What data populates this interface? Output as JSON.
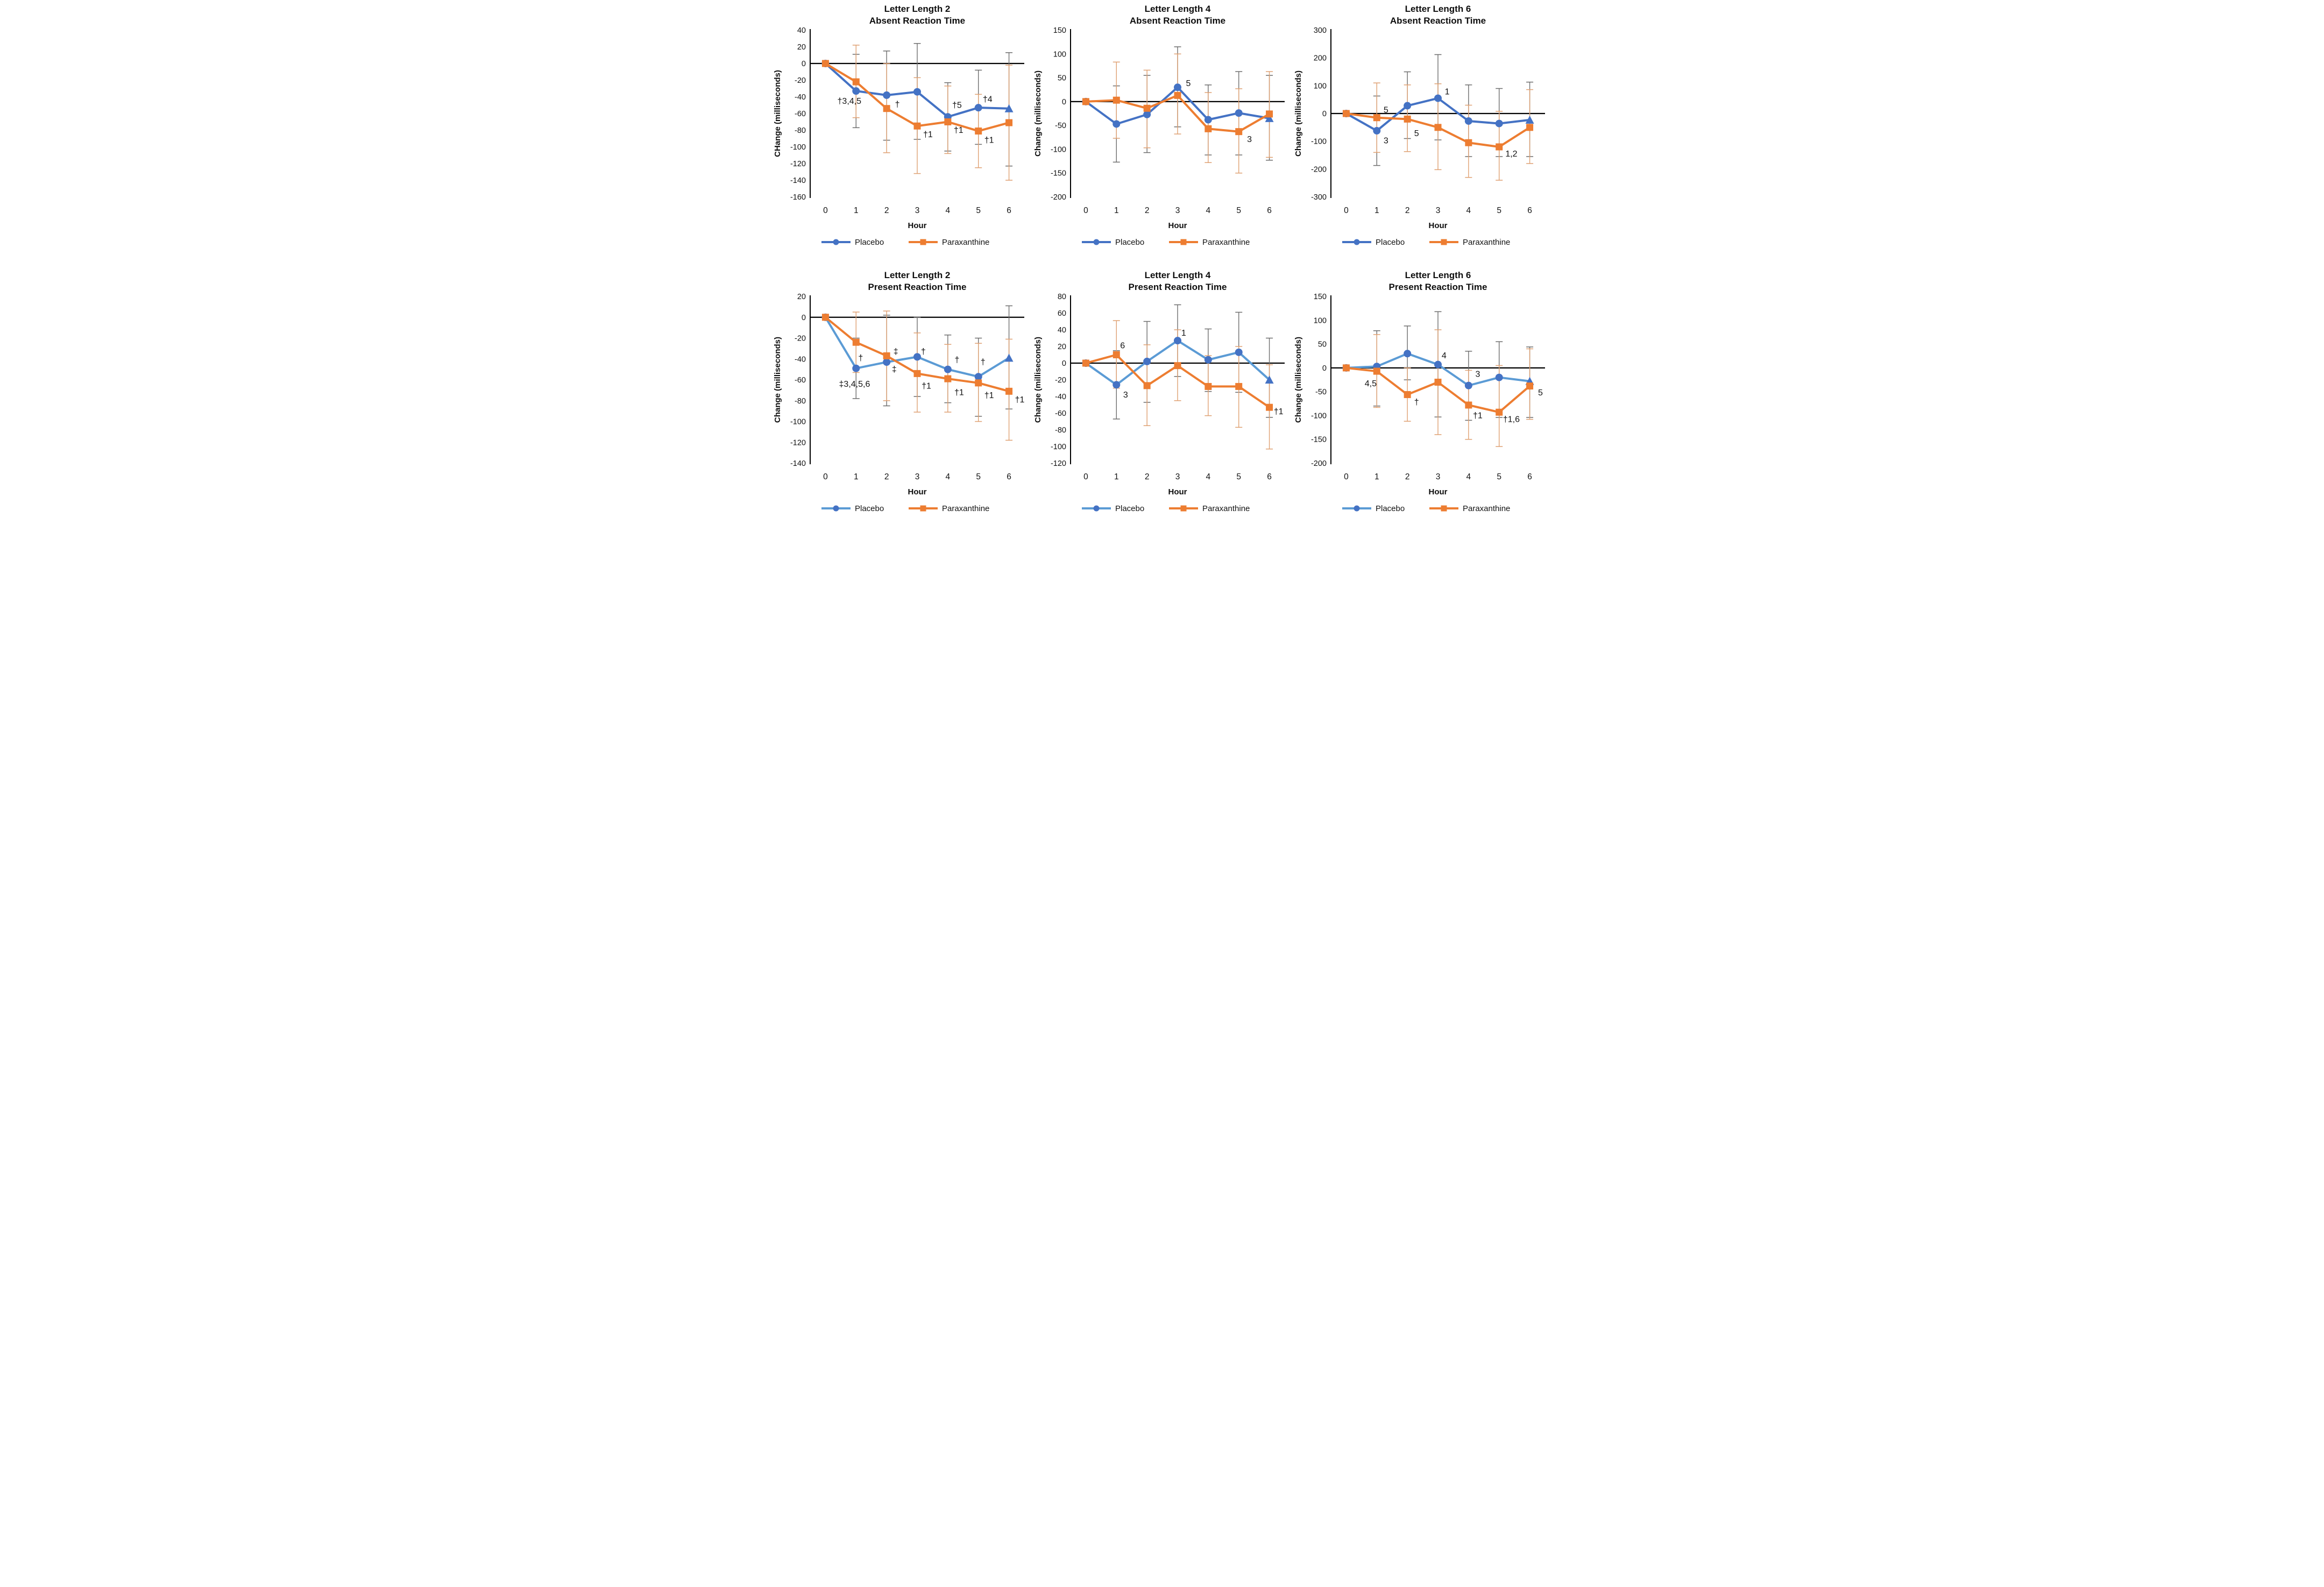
{
  "figure": {
    "background": "#FFFFFF",
    "rows": 2,
    "cols": 3
  },
  "colors": {
    "placebo_line_top_row": "#4472C4",
    "placebo_line_bottom_row": "#5B9BD5",
    "placebo_marker": "#4472C4",
    "paraxanthine": "#ED7D31",
    "placebo_error": "#6E6E6E",
    "paraxanthine_error": "#DFA173",
    "axis": "#000000"
  },
  "chart_data": [
    {
      "type": "line",
      "title_line1": "Letter Length 2",
      "title_line2": "Absent Reaction Time",
      "xlabel": "Hour",
      "ylabel": "CHange (milliseconds)",
      "x": [
        0,
        1,
        2,
        3,
        4,
        5,
        6
      ],
      "ylim": [
        -160,
        40
      ],
      "ytick_step": 20,
      "yticks": [
        40,
        20,
        0,
        -20,
        -40,
        -60,
        -80,
        -100,
        -120,
        -140,
        -160
      ],
      "grid": "off",
      "legend_position": "bottom",
      "series": [
        {
          "name": "Placebo",
          "marker": "circle",
          "last_point_marker": "triangle",
          "line_color": "#4472C4",
          "marker_color": "#4472C4",
          "error_color": "#6E6E6E",
          "values": [
            0,
            -33,
            -38,
            -34,
            -64,
            -53,
            -54
          ],
          "err_low": [
            null,
            -77,
            -92,
            -91,
            -105,
            -97,
            -123
          ],
          "err_high": [
            null,
            11,
            15,
            24,
            -23,
            -8,
            13
          ]
        },
        {
          "name": "Paraxanthine",
          "marker": "square",
          "line_color": "#ED7D31",
          "marker_color": "#ED7D31",
          "error_color": "#DFA173",
          "values": [
            0,
            -22,
            -54,
            -75,
            -70,
            -81,
            -71
          ],
          "err_low": [
            null,
            -65,
            -107,
            -132,
            -108,
            -125,
            -140
          ],
          "err_high": [
            null,
            22,
            0,
            -17,
            -27,
            -37,
            -2
          ]
        }
      ],
      "annotations": [
        {
          "x": 0.78,
          "y": -45,
          "text": "†3,4,5"
        },
        {
          "x": 2.35,
          "y": -49,
          "text": "†"
        },
        {
          "x": 3.35,
          "y": -85,
          "text": "†1"
        },
        {
          "x": 4.3,
          "y": -50,
          "text": "†5"
        },
        {
          "x": 4.35,
          "y": -80,
          "text": "†1"
        },
        {
          "x": 5.3,
          "y": -43,
          "text": "†4"
        },
        {
          "x": 5.35,
          "y": -92,
          "text": "†1"
        }
      ]
    },
    {
      "type": "line",
      "title_line1": "Letter Length 4",
      "title_line2": "Absent Reaction Time",
      "xlabel": "Hour",
      "ylabel": "Change (milliseconds)",
      "x": [
        0,
        1,
        2,
        3,
        4,
        5,
        6
      ],
      "ylim": [
        -200,
        150
      ],
      "ytick_step": 50,
      "yticks": [
        150,
        100,
        50,
        0,
        -50,
        -100,
        -150,
        -200
      ],
      "grid": "off",
      "legend_position": "bottom",
      "series": [
        {
          "name": "Placebo",
          "marker": "circle",
          "last_point_marker": "triangle",
          "line_color": "#4472C4",
          "marker_color": "#4472C4",
          "error_color": "#6E6E6E",
          "values": [
            0,
            -47,
            -27,
            30,
            -38,
            -24,
            -35
          ],
          "err_low": [
            null,
            -127,
            -107,
            -53,
            -112,
            -112,
            -123
          ],
          "err_high": [
            null,
            33,
            55,
            115,
            35,
            63,
            55
          ]
        },
        {
          "name": "Paraxanthine",
          "marker": "square",
          "line_color": "#ED7D31",
          "marker_color": "#ED7D31",
          "error_color": "#DFA173",
          "values": [
            0,
            3,
            -14,
            13,
            -57,
            -63,
            -26
          ],
          "err_low": [
            null,
            -77,
            -97,
            -68,
            -128,
            -150,
            -117
          ],
          "err_high": [
            null,
            83,
            66,
            100,
            19,
            27,
            63
          ]
        }
      ],
      "annotations": [
        {
          "x": 3.35,
          "y": 38,
          "text": "5"
        },
        {
          "x": 5.35,
          "y": -79,
          "text": "3"
        }
      ]
    },
    {
      "type": "line",
      "title_line1": "Letter Length 6",
      "title_line2": "Absent Reaction Time",
      "xlabel": "Hour",
      "ylabel": "Change (milliseconds)",
      "x": [
        0,
        1,
        2,
        3,
        4,
        5,
        6
      ],
      "ylim": [
        -300,
        300
      ],
      "ytick_step": 100,
      "yticks": [
        300,
        200,
        100,
        0,
        -100,
        -200,
        -300
      ],
      "grid": "off",
      "legend_position": "bottom",
      "series": [
        {
          "name": "Placebo",
          "marker": "circle",
          "last_point_marker": "triangle",
          "line_color": "#4472C4",
          "marker_color": "#4472C4",
          "error_color": "#6E6E6E",
          "values": [
            0,
            -62,
            28,
            55,
            -27,
            -36,
            -23
          ],
          "err_low": [
            null,
            -187,
            -90,
            -95,
            -155,
            -155,
            -155
          ],
          "err_high": [
            null,
            63,
            150,
            212,
            103,
            90,
            113
          ]
        },
        {
          "name": "Paraxanthine",
          "marker": "square",
          "line_color": "#ED7D31",
          "marker_color": "#ED7D31",
          "error_color": "#DFA173",
          "values": [
            0,
            -15,
            -20,
            -50,
            -105,
            -120,
            -50
          ],
          "err_low": [
            null,
            -140,
            -137,
            -202,
            -230,
            -240,
            -180
          ],
          "err_high": [
            null,
            110,
            103,
            107,
            30,
            8,
            86
          ]
        }
      ],
      "annotations": [
        {
          "x": 1.3,
          "y": 13,
          "text": "5"
        },
        {
          "x": 1.3,
          "y": -98,
          "text": "3"
        },
        {
          "x": 2.3,
          "y": -72,
          "text": "5"
        },
        {
          "x": 3.3,
          "y": 78,
          "text": "1"
        },
        {
          "x": 5.4,
          "y": -145,
          "text": "1,2"
        }
      ]
    },
    {
      "type": "line",
      "title_line1": "Letter Length 2",
      "title_line2": "Present Reaction Time",
      "xlabel": "Hour",
      "ylabel": "Change (milliseconds)",
      "x": [
        0,
        1,
        2,
        3,
        4,
        5,
        6
      ],
      "ylim": [
        -140,
        20
      ],
      "ytick_step": 20,
      "yticks": [
        20,
        0,
        -20,
        -40,
        -60,
        -80,
        -100,
        -120,
        -140
      ],
      "grid": "off",
      "legend_position": "bottom",
      "series": [
        {
          "name": "Placebo",
          "marker": "circle",
          "last_point_marker": "triangle",
          "line_color": "#5B9BD5",
          "marker_color": "#4472C4",
          "error_color": "#6E6E6E",
          "values": [
            0,
            -49,
            -43,
            -38,
            -50,
            -57,
            -39
          ],
          "err_low": [
            null,
            -78,
            -85,
            -76,
            -82,
            -95,
            -88
          ],
          "err_high": [
            null,
            -20,
            2,
            0,
            -17,
            -20,
            11
          ]
        },
        {
          "name": "Paraxanthine",
          "marker": "square",
          "line_color": "#ED7D31",
          "marker_color": "#ED7D31",
          "error_color": "#DFA173",
          "values": [
            0,
            -24,
            -37,
            -54,
            -59,
            -63,
            -71
          ],
          "err_low": [
            null,
            -53,
            -80,
            -91,
            -91,
            -100,
            -118
          ],
          "err_high": [
            null,
            5,
            6,
            -15,
            -26,
            -25,
            -21
          ]
        }
      ],
      "annotations": [
        {
          "x": 1.15,
          "y": -39,
          "text": "†"
        },
        {
          "x": 0.95,
          "y": -64,
          "text": "‡3,4,5,6"
        },
        {
          "x": 2.3,
          "y": -33,
          "text": "‡"
        },
        {
          "x": 2.25,
          "y": -50,
          "text": "‡"
        },
        {
          "x": 3.2,
          "y": -33,
          "text": "†"
        },
        {
          "x": 3.3,
          "y": -66,
          "text": "†1"
        },
        {
          "x": 4.3,
          "y": -41,
          "text": "†"
        },
        {
          "x": 4.37,
          "y": -72,
          "text": "†1"
        },
        {
          "x": 5.15,
          "y": -43,
          "text": "†"
        },
        {
          "x": 5.35,
          "y": -75,
          "text": "†1"
        },
        {
          "x": 6.35,
          "y": -79,
          "text": "†1"
        }
      ]
    },
    {
      "type": "line",
      "title_line1": "Letter Length 4",
      "title_line2": "Present Reaction Time",
      "xlabel": "Hour",
      "ylabel": "Change (milliseconds)",
      "x": [
        0,
        1,
        2,
        3,
        4,
        5,
        6
      ],
      "ylim": [
        -120,
        80
      ],
      "ytick_step": 20,
      "yticks": [
        80,
        60,
        40,
        20,
        0,
        -20,
        -40,
        -60,
        -80,
        -100,
        -120
      ],
      "grid": "off",
      "legend_position": "bottom",
      "series": [
        {
          "name": "Placebo",
          "marker": "circle",
          "last_point_marker": "triangle",
          "line_color": "#5B9BD5",
          "marker_color": "#4472C4",
          "error_color": "#6E6E6E",
          "values": [
            0,
            -26,
            2,
            27,
            4,
            13,
            -20
          ],
          "err_low": [
            null,
            -67,
            -47,
            -16,
            -34,
            -35,
            -65
          ],
          "err_high": [
            null,
            15,
            50,
            70,
            41,
            61,
            30
          ]
        },
        {
          "name": "Paraxanthine",
          "marker": "square",
          "line_color": "#ED7D31",
          "marker_color": "#ED7D31",
          "error_color": "#DFA173",
          "values": [
            0,
            10,
            -27,
            -3,
            -28,
            -28,
            -53
          ],
          "err_low": [
            null,
            -30,
            -75,
            -45,
            -63,
            -77,
            -103
          ],
          "err_high": [
            null,
            51,
            22,
            40,
            9,
            20,
            -2
          ]
        }
      ],
      "annotations": [
        {
          "x": 1.2,
          "y": 21,
          "text": "6"
        },
        {
          "x": 1.3,
          "y": -38,
          "text": "3"
        },
        {
          "x": 3.2,
          "y": 36,
          "text": "1"
        },
        {
          "x": 6.3,
          "y": -58,
          "text": "†1"
        }
      ]
    },
    {
      "type": "line",
      "title_line1": "Letter Length 6",
      "title_line2": "Present Reaction Time",
      "xlabel": "Hour",
      "ylabel": "Change (milliseconds)",
      "x": [
        0,
        1,
        2,
        3,
        4,
        5,
        6
      ],
      "ylim": [
        -200,
        150
      ],
      "ytick_step": 50,
      "yticks": [
        150,
        100,
        50,
        0,
        -50,
        -100,
        -150,
        -200
      ],
      "grid": "off",
      "legend_position": "bottom",
      "series": [
        {
          "name": "Placebo",
          "marker": "circle",
          "last_point_marker": "triangle",
          "line_color": "#5B9BD5",
          "marker_color": "#4472C4",
          "error_color": "#6E6E6E",
          "values": [
            0,
            3,
            30,
            7,
            -37,
            -20,
            -28
          ],
          "err_low": [
            null,
            -80,
            -25,
            -103,
            -110,
            -104,
            -104
          ],
          "err_high": [
            null,
            78,
            88,
            118,
            35,
            55,
            44
          ]
        },
        {
          "name": "Paraxanthine",
          "marker": "square",
          "line_color": "#ED7D31",
          "marker_color": "#ED7D31",
          "error_color": "#DFA173",
          "values": [
            0,
            -7,
            -56,
            -30,
            -78,
            -93,
            -38
          ],
          "err_low": [
            null,
            -83,
            -112,
            -140,
            -150,
            -165,
            -108
          ],
          "err_high": [
            null,
            70,
            0,
            80,
            -5,
            5,
            40
          ]
        }
      ],
      "annotations": [
        {
          "x": 0.8,
          "y": -33,
          "text": "4,5"
        },
        {
          "x": 2.3,
          "y": -72,
          "text": "†"
        },
        {
          "x": 3.2,
          "y": 26,
          "text": "4"
        },
        {
          "x": 4.3,
          "y": -13,
          "text": "3"
        },
        {
          "x": 4.3,
          "y": -100,
          "text": "†1"
        },
        {
          "x": 5.4,
          "y": -108,
          "text": "†1,6"
        },
        {
          "x": 6.35,
          "y": -52,
          "text": "5"
        }
      ]
    }
  ]
}
